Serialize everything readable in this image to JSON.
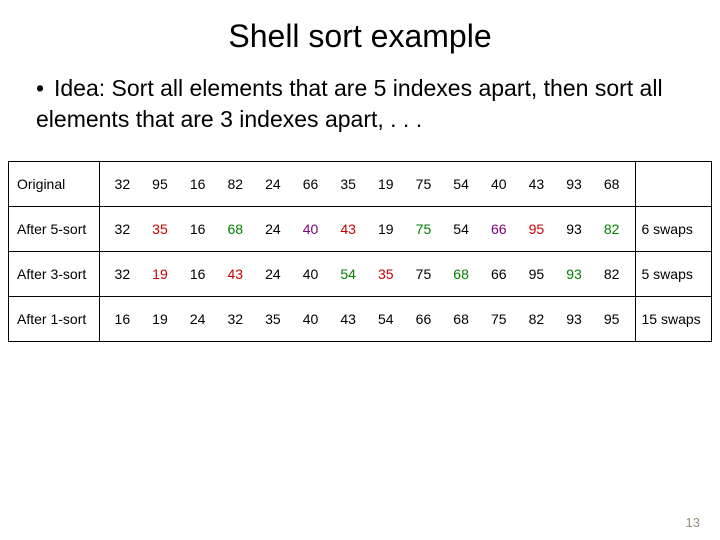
{
  "title": "Shell sort example",
  "bullet": "Idea: Sort all elements that are 5 indexes apart, then sort all elements that are 3 indexes apart, . . .",
  "page_number": "13",
  "colors": {
    "black": "#000000",
    "red": "#cc0000",
    "green": "#008000",
    "purple": "#800080"
  },
  "rows": [
    {
      "label": "Original",
      "swaps": "",
      "cells": [
        {
          "v": "32",
          "c": "black"
        },
        {
          "v": "95",
          "c": "black"
        },
        {
          "v": "16",
          "c": "black"
        },
        {
          "v": "82",
          "c": "black"
        },
        {
          "v": "24",
          "c": "black"
        },
        {
          "v": "66",
          "c": "black"
        },
        {
          "v": "35",
          "c": "black"
        },
        {
          "v": "19",
          "c": "black"
        },
        {
          "v": "75",
          "c": "black"
        },
        {
          "v": "54",
          "c": "black"
        },
        {
          "v": "40",
          "c": "black"
        },
        {
          "v": "43",
          "c": "black"
        },
        {
          "v": "93",
          "c": "black"
        },
        {
          "v": "68",
          "c": "black"
        }
      ]
    },
    {
      "label": "After 5-sort",
      "swaps": "6 swaps",
      "cells": [
        {
          "v": "32",
          "c": "black"
        },
        {
          "v": "35",
          "c": "red"
        },
        {
          "v": "16",
          "c": "black"
        },
        {
          "v": "68",
          "c": "green"
        },
        {
          "v": "24",
          "c": "black"
        },
        {
          "v": "40",
          "c": "purple"
        },
        {
          "v": "43",
          "c": "red"
        },
        {
          "v": "19",
          "c": "black"
        },
        {
          "v": "75",
          "c": "green"
        },
        {
          "v": "54",
          "c": "black"
        },
        {
          "v": "66",
          "c": "purple"
        },
        {
          "v": "95",
          "c": "red"
        },
        {
          "v": "93",
          "c": "black"
        },
        {
          "v": "82",
          "c": "green"
        }
      ]
    },
    {
      "label": "After 3-sort",
      "swaps": "5 swaps",
      "cells": [
        {
          "v": "32",
          "c": "black"
        },
        {
          "v": "19",
          "c": "red"
        },
        {
          "v": "16",
          "c": "black"
        },
        {
          "v": "43",
          "c": "red"
        },
        {
          "v": "24",
          "c": "black"
        },
        {
          "v": "40",
          "c": "black"
        },
        {
          "v": "54",
          "c": "green"
        },
        {
          "v": "35",
          "c": "red"
        },
        {
          "v": "75",
          "c": "black"
        },
        {
          "v": "68",
          "c": "green"
        },
        {
          "v": "66",
          "c": "black"
        },
        {
          "v": "95",
          "c": "black"
        },
        {
          "v": "93",
          "c": "green"
        },
        {
          "v": "82",
          "c": "black"
        }
      ]
    },
    {
      "label": "After 1-sort",
      "swaps": "15 swaps",
      "cells": [
        {
          "v": "16",
          "c": "black"
        },
        {
          "v": "19",
          "c": "black"
        },
        {
          "v": "24",
          "c": "black"
        },
        {
          "v": "32",
          "c": "black"
        },
        {
          "v": "35",
          "c": "black"
        },
        {
          "v": "40",
          "c": "black"
        },
        {
          "v": "43",
          "c": "black"
        },
        {
          "v": "54",
          "c": "black"
        },
        {
          "v": "66",
          "c": "black"
        },
        {
          "v": "68",
          "c": "black"
        },
        {
          "v": "75",
          "c": "black"
        },
        {
          "v": "82",
          "c": "black"
        },
        {
          "v": "93",
          "c": "black"
        },
        {
          "v": "95",
          "c": "black"
        }
      ]
    }
  ]
}
